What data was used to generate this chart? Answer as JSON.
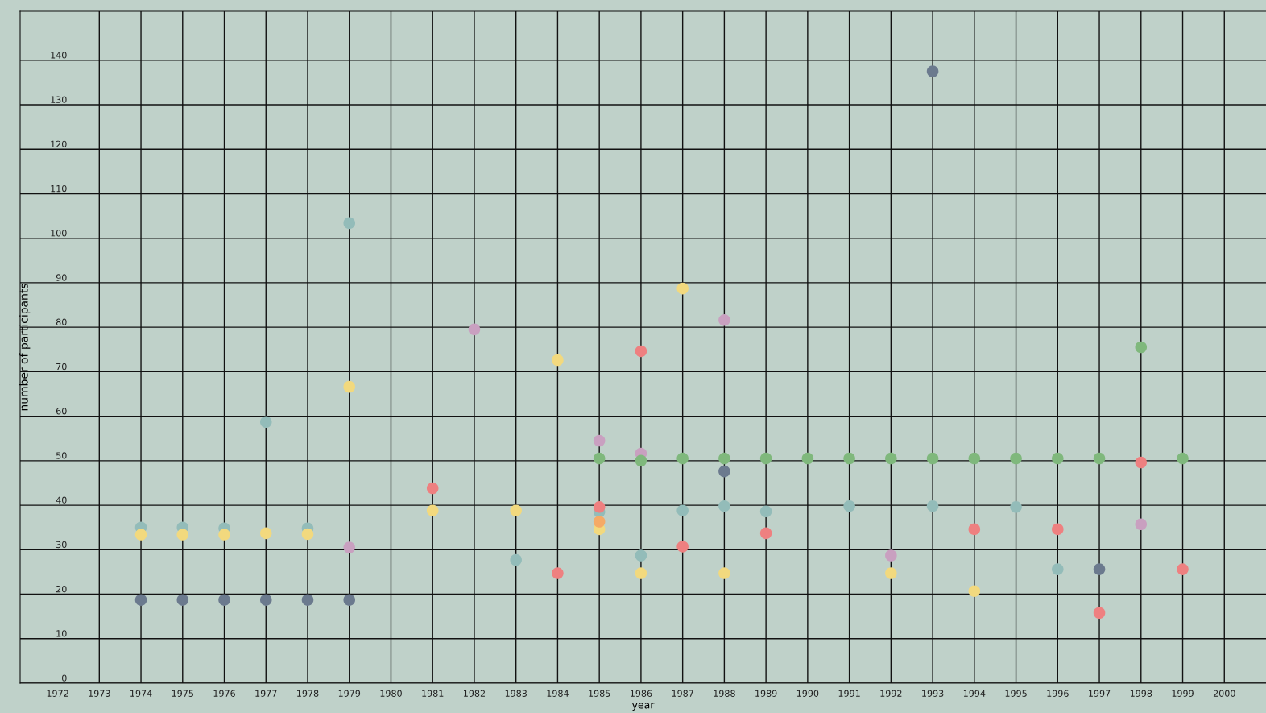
{
  "chart_data": {
    "type": "scatter",
    "xlabel": "year",
    "ylabel": "number of participants",
    "xlim": [
      1971.1,
      2001
    ],
    "xticks": [
      1972,
      1973,
      1974,
      1975,
      1976,
      1977,
      1978,
      1979,
      1980,
      1981,
      1982,
      1983,
      1984,
      1985,
      1986,
      1987,
      1988,
      1989,
      1990,
      1991,
      1992,
      1993,
      1994,
      1995,
      1996,
      1997,
      1998,
      1999,
      2000
    ],
    "ylim": [
      0,
      151
    ],
    "yticks": [
      0,
      10,
      20,
      30,
      40,
      50,
      60,
      70,
      80,
      90,
      100,
      110,
      120,
      130,
      140
    ],
    "grid": true,
    "marker": "circle",
    "series": [
      {
        "color": "#93bcb9",
        "x": [
          1974,
          1975,
          1976,
          1977,
          1978,
          1979,
          1983,
          1985,
          1986,
          1987,
          1988,
          1989,
          1991,
          1993,
          1995,
          1996
        ],
        "values": [
          35,
          35,
          34.8,
          58.7,
          34.8,
          103.4,
          27.7,
          38.5,
          28.7,
          38.8,
          39.8,
          38.6,
          39.8,
          39.8,
          39.6,
          25.6
        ]
      },
      {
        "color": "#f2d97e",
        "x": [
          1974,
          1975,
          1976,
          1977,
          1978,
          1979,
          1981,
          1983,
          1984,
          1985,
          1986,
          1987,
          1988,
          1992,
          1994
        ],
        "values": [
          33.4,
          33.4,
          33.4,
          33.7,
          33.5,
          66.6,
          38.8,
          38.8,
          72.6,
          34.6,
          24.7,
          88.7,
          24.7,
          24.7,
          20.7
        ]
      },
      {
        "color": "#f5aa66",
        "x": [
          1985
        ],
        "values": [
          36.3
        ]
      },
      {
        "color": "#ee8080",
        "x": [
          1981,
          1984,
          1985,
          1986,
          1987,
          1989,
          1994,
          1996,
          1997,
          1998,
          1999
        ],
        "values": [
          43.8,
          24.7,
          39.6,
          74.6,
          30.7,
          33.7,
          34.6,
          34.6,
          15.8,
          49.6,
          25.6
        ]
      },
      {
        "color": "#c9a0c0",
        "x": [
          1979,
          1982,
          1985,
          1986,
          1988,
          1992,
          1998
        ],
        "values": [
          30.5,
          79.5,
          54.5,
          51.6,
          81.6,
          28.7,
          35.7
        ]
      },
      {
        "color": "#7fb87c",
        "x": [
          1985,
          1986,
          1987,
          1988,
          1989,
          1990,
          1991,
          1992,
          1993,
          1994,
          1995,
          1996,
          1997,
          1998,
          1999
        ],
        "values": [
          50.5,
          50,
          50.5,
          50.5,
          50.5,
          50.5,
          50.5,
          50.5,
          50.5,
          50.5,
          50.5,
          50.5,
          50.5,
          75.5,
          50.5
        ]
      },
      {
        "color": "#6b7a8e",
        "x": [
          1974,
          1975,
          1976,
          1977,
          1978,
          1979,
          1988,
          1993,
          1997
        ],
        "values": [
          18.7,
          18.7,
          18.7,
          18.7,
          18.7,
          18.7,
          47.6,
          137.5,
          25.6
        ]
      }
    ]
  }
}
